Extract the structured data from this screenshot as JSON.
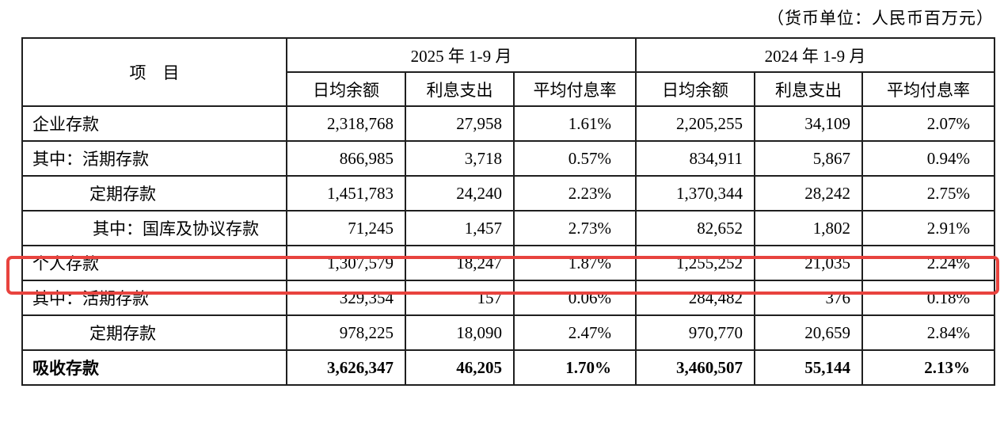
{
  "unit_note": "（货币单位：人民币百万元）",
  "table": {
    "item_header": "项　目",
    "period_headers": [
      "2025 年 1-9 月",
      "2024 年 1-9 月"
    ],
    "sub_headers": [
      "日均余额",
      "利息支出",
      "平均付息率",
      "日均余额",
      "利息支出",
      "平均付息率"
    ],
    "rows": [
      {
        "label": "企业存款",
        "indent": 0,
        "bold": false,
        "highlight": false,
        "values": [
          "2,318,768",
          "27,958",
          "1.61%",
          "2,205,255",
          "34,109",
          "2.07%"
        ]
      },
      {
        "label": "其中：活期存款",
        "indent": 0,
        "bold": false,
        "highlight": false,
        "values": [
          "866,985",
          "3,718",
          "0.57%",
          "834,911",
          "5,867",
          "0.94%"
        ]
      },
      {
        "label": "定期存款",
        "indent": 1,
        "bold": false,
        "highlight": false,
        "values": [
          "1,451,783",
          "24,240",
          "2.23%",
          "1,370,344",
          "28,242",
          "2.75%"
        ]
      },
      {
        "label": "其中：国库及协议存款",
        "indent": 2,
        "bold": false,
        "highlight": false,
        "values": [
          "71,245",
          "1,457",
          "2.73%",
          "82,652",
          "1,802",
          "2.91%"
        ]
      },
      {
        "label": "个人存款",
        "indent": 0,
        "bold": false,
        "highlight": true,
        "values": [
          "1,307,579",
          "18,247",
          "1.87%",
          "1,255,252",
          "21,035",
          "2.24%"
        ]
      },
      {
        "label": "其中：活期存款",
        "indent": 0,
        "bold": false,
        "highlight": false,
        "values": [
          "329,354",
          "157",
          "0.06%",
          "284,482",
          "376",
          "0.18%"
        ]
      },
      {
        "label": "定期存款",
        "indent": 1,
        "bold": false,
        "highlight": false,
        "values": [
          "978,225",
          "18,090",
          "2.47%",
          "970,770",
          "20,659",
          "2.84%"
        ]
      },
      {
        "label": "吸收存款",
        "indent": 0,
        "bold": true,
        "highlight": false,
        "values": [
          "3,626,347",
          "46,205",
          "1.70%",
          "3,460,507",
          "55,144",
          "2.13%"
        ]
      }
    ]
  },
  "colors": {
    "highlight_border": "#e8433e",
    "table_border": "#1f1f1f",
    "background": "#ffffff"
  }
}
